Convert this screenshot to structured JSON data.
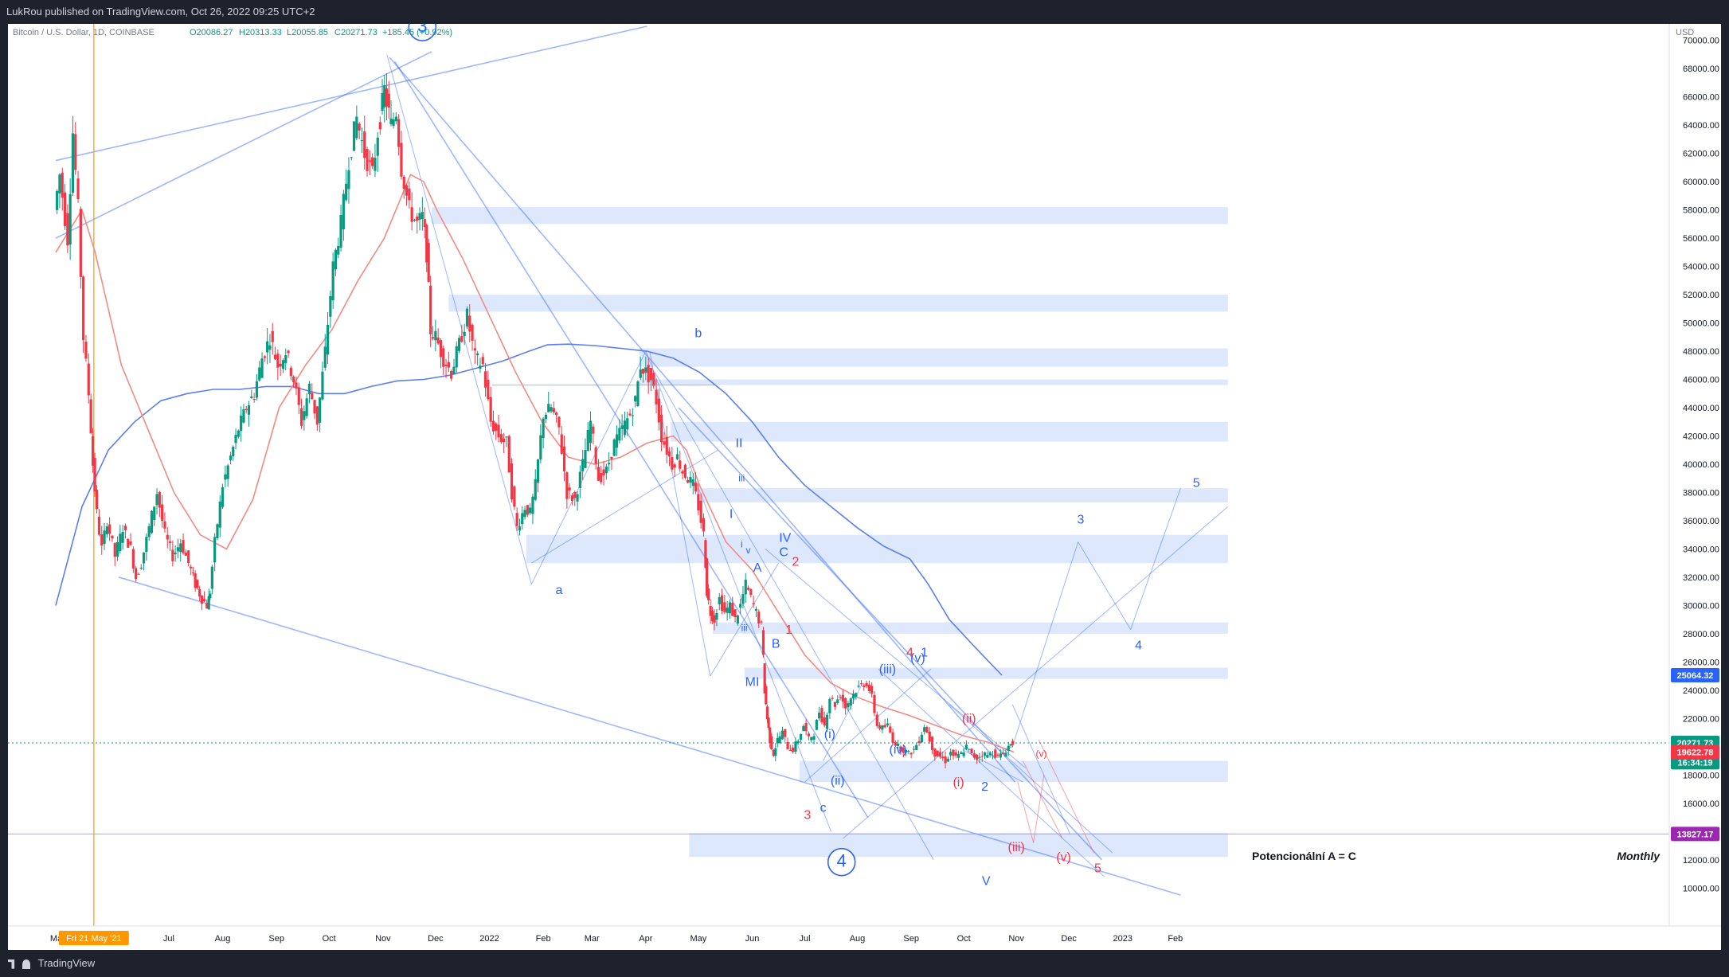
{
  "header": {
    "publish_text": "LukRou published on TradingView.com, Oct 26, 2022 09:25 UTC+2"
  },
  "footer": {
    "brand": "TradingView"
  },
  "chart_data": {
    "type": "candlestick",
    "symbol_line": "Bitcoin / U.S. Dollar, 1D, COINBASE",
    "ohlc": {
      "open": "O20086.27",
      "high": "H20313.33",
      "low": "L20055.85",
      "close": "C20271.73",
      "change": "+185.45 (+0.92%)"
    },
    "currency": "USD",
    "ylim": [
      9000,
      71000
    ],
    "y_ticks": [
      10000,
      12000,
      14000,
      16000,
      18000,
      20000,
      22000,
      24000,
      26000,
      28000,
      30000,
      32000,
      34000,
      36000,
      38000,
      40000,
      42000,
      44000,
      46000,
      48000,
      50000,
      52000,
      54000,
      56000,
      58000,
      60000,
      62000,
      64000,
      66000,
      68000,
      70000
    ],
    "x_labels": [
      {
        "t": 0.1,
        "label": "May"
      },
      {
        "t": 4.3,
        "label": "Jul"
      },
      {
        "t": 6.35,
        "label": "Aug"
      },
      {
        "t": 8.4,
        "label": "Sep"
      },
      {
        "t": 10.4,
        "label": "Oct"
      },
      {
        "t": 12.45,
        "label": "Nov"
      },
      {
        "t": 14.45,
        "label": "Dec"
      },
      {
        "t": 16.5,
        "label": "2022"
      },
      {
        "t": 18.55,
        "label": "Feb"
      },
      {
        "t": 20.4,
        "label": "Mar"
      },
      {
        "t": 22.45,
        "label": "Apr"
      },
      {
        "t": 24.45,
        "label": "May"
      },
      {
        "t": 26.5,
        "label": "Jun"
      },
      {
        "t": 28.5,
        "label": "Jul"
      },
      {
        "t": 30.5,
        "label": "Aug"
      },
      {
        "t": 32.55,
        "label": "Sep"
      },
      {
        "t": 34.55,
        "label": "Oct"
      },
      {
        "t": 36.55,
        "label": "Nov"
      },
      {
        "t": 38.55,
        "label": "Dec"
      },
      {
        "t": 40.6,
        "label": "2023"
      },
      {
        "t": 42.6,
        "label": "Feb"
      }
    ],
    "vertical_marker": {
      "t": 1.45,
      "label": "Fri 21 May '21"
    },
    "price_labels": [
      {
        "value": 25064.32,
        "text": "25064.32",
        "color": "#2962ff"
      },
      {
        "value": 20271.73,
        "text": "20271.73",
        "color": "#089981"
      },
      {
        "value": 18900,
        "text": "16:34:19",
        "color": "#089981"
      },
      {
        "value": 19622.78,
        "text": "19622.78",
        "color": "#f23645"
      },
      {
        "value": 13827.17,
        "text": "13827.17",
        "color": "#9c27b0"
      }
    ],
    "price_path": [
      [
        0,
        58000
      ],
      [
        0.2,
        60500
      ],
      [
        0.5,
        56000
      ],
      [
        0.7,
        63500
      ],
      [
        0.9,
        58000
      ],
      [
        1.1,
        49000
      ],
      [
        1.3,
        45000
      ],
      [
        1.45,
        40000
      ],
      [
        1.6,
        36500
      ],
      [
        1.8,
        34000
      ],
      [
        2.0,
        36000
      ],
      [
        2.3,
        33500
      ],
      [
        2.6,
        35500
      ],
      [
        2.9,
        34000
      ],
      [
        3.1,
        32000
      ],
      [
        3.3,
        33000
      ],
      [
        3.6,
        35500
      ],
      [
        3.9,
        38000
      ],
      [
        4.2,
        35000
      ],
      [
        4.5,
        33500
      ],
      [
        4.8,
        34500
      ],
      [
        5.1,
        33000
      ],
      [
        5.35,
        31500
      ],
      [
        5.6,
        30500
      ],
      [
        5.8,
        30000
      ],
      [
        5.9,
        31000
      ],
      [
        6.1,
        34500
      ],
      [
        6.4,
        38500
      ],
      [
        6.7,
        40500
      ],
      [
        7.0,
        42500
      ],
      [
        7.3,
        44000
      ],
      [
        7.6,
        45000
      ],
      [
        7.9,
        47500
      ],
      [
        8.2,
        49000
      ],
      [
        8.5,
        47000
      ],
      [
        8.8,
        48000
      ],
      [
        9.1,
        46000
      ],
      [
        9.4,
        43000
      ],
      [
        9.7,
        45500
      ],
      [
        10.0,
        43000
      ],
      [
        10.3,
        48000
      ],
      [
        10.6,
        54000
      ],
      [
        10.9,
        57000
      ],
      [
        11.2,
        61500
      ],
      [
        11.5,
        64500
      ],
      [
        11.8,
        62000
      ],
      [
        12.1,
        60500
      ],
      [
        12.3,
        63500
      ],
      [
        12.55,
        66500
      ],
      [
        12.8,
        64000
      ],
      [
        13.0,
        65000
      ],
      [
        13.2,
        61000
      ],
      [
        13.5,
        58000
      ],
      [
        13.8,
        57000
      ],
      [
        14.0,
        57500
      ],
      [
        14.15,
        55000
      ],
      [
        14.3,
        49500
      ],
      [
        14.5,
        49000
      ],
      [
        14.8,
        47500
      ],
      [
        15.1,
        46500
      ],
      [
        15.4,
        48500
      ],
      [
        15.7,
        50500
      ],
      [
        16.0,
        47500
      ],
      [
        16.3,
        47000
      ],
      [
        16.6,
        43000
      ],
      [
        16.9,
        42000
      ],
      [
        17.2,
        41500
      ],
      [
        17.4,
        38000
      ],
      [
        17.6,
        35500
      ],
      [
        17.9,
        37000
      ],
      [
        18.1,
        36500
      ],
      [
        18.3,
        38500
      ],
      [
        18.6,
        43500
      ],
      [
        18.9,
        44000
      ],
      [
        19.2,
        42500
      ],
      [
        19.5,
        38000
      ],
      [
        19.8,
        37500
      ],
      [
        20.1,
        40000
      ],
      [
        20.4,
        43000
      ],
      [
        20.7,
        39000
      ],
      [
        21.0,
        39500
      ],
      [
        21.3,
        41500
      ],
      [
        21.6,
        42500
      ],
      [
        21.9,
        43500
      ],
      [
        22.1,
        44500
      ],
      [
        22.3,
        47000
      ],
      [
        22.5,
        46500
      ],
      [
        22.7,
        46000
      ],
      [
        22.9,
        44500
      ],
      [
        23.1,
        42000
      ],
      [
        23.3,
        41000
      ],
      [
        23.5,
        40000
      ],
      [
        23.7,
        40500
      ],
      [
        23.9,
        39500
      ],
      [
        24.1,
        39000
      ],
      [
        24.3,
        38500
      ],
      [
        24.5,
        37000
      ],
      [
        24.7,
        35000
      ],
      [
        24.8,
        31000
      ],
      [
        24.95,
        29500
      ],
      [
        25.1,
        29000
      ],
      [
        25.3,
        30500
      ],
      [
        25.5,
        29500
      ],
      [
        25.7,
        30000
      ],
      [
        25.9,
        29000
      ],
      [
        26.1,
        30000
      ],
      [
        26.3,
        31500
      ],
      [
        26.5,
        30500
      ],
      [
        26.7,
        29500
      ],
      [
        26.9,
        28500
      ],
      [
        27.0,
        24000
      ],
      [
        27.1,
        22000
      ],
      [
        27.2,
        20500
      ],
      [
        27.35,
        19500
      ],
      [
        27.5,
        20500
      ],
      [
        27.7,
        21000
      ],
      [
        27.9,
        20000
      ],
      [
        28.1,
        19800
      ],
      [
        28.3,
        20500
      ],
      [
        28.5,
        21500
      ],
      [
        28.7,
        20500
      ],
      [
        28.9,
        21000
      ],
      [
        29.1,
        22500
      ],
      [
        29.3,
        21500
      ],
      [
        29.5,
        23500
      ],
      [
        29.7,
        23000
      ],
      [
        29.9,
        23700
      ],
      [
        30.1,
        22800
      ],
      [
        30.3,
        23500
      ],
      [
        30.5,
        24000
      ],
      [
        30.7,
        24400
      ],
      [
        30.9,
        24500
      ],
      [
        31.1,
        23500
      ],
      [
        31.3,
        21500
      ],
      [
        31.5,
        21300
      ],
      [
        31.7,
        21500
      ],
      [
        31.9,
        20500
      ],
      [
        32.1,
        20000
      ],
      [
        32.3,
        19800
      ],
      [
        32.5,
        19500
      ],
      [
        32.7,
        19800
      ],
      [
        32.9,
        20500
      ],
      [
        33.1,
        21500
      ],
      [
        33.3,
        20500
      ],
      [
        33.5,
        19500
      ],
      [
        33.7,
        19300
      ],
      [
        33.9,
        19000
      ],
      [
        34.1,
        19600
      ],
      [
        34.3,
        19200
      ],
      [
        34.5,
        19500
      ],
      [
        34.7,
        20000
      ],
      [
        34.9,
        19400
      ],
      [
        35.1,
        19200
      ],
      [
        35.3,
        19500
      ],
      [
        35.5,
        19400
      ],
      [
        35.7,
        19600
      ],
      [
        35.9,
        19300
      ],
      [
        36.1,
        19500
      ],
      [
        36.3,
        20050
      ],
      [
        36.45,
        20270
      ]
    ],
    "sma_blue": [
      [
        0,
        30000
      ],
      [
        1,
        37000
      ],
      [
        2,
        41000
      ],
      [
        3,
        43000
      ],
      [
        4,
        44500
      ],
      [
        5,
        45000
      ],
      [
        6,
        45300
      ],
      [
        7,
        45300
      ],
      [
        8,
        45500
      ],
      [
        9,
        45500
      ],
      [
        10,
        45000
      ],
      [
        11,
        45000
      ],
      [
        12,
        45500
      ],
      [
        13,
        45900
      ],
      [
        14,
        46000
      ],
      [
        15,
        46300
      ],
      [
        16,
        46800
      ],
      [
        17,
        47300
      ],
      [
        18,
        48000
      ],
      [
        18.7,
        48450
      ],
      [
        19.5,
        48500
      ],
      [
        20.5,
        48400
      ],
      [
        21.5,
        48200
      ],
      [
        22.5,
        48000
      ],
      [
        23.5,
        47500
      ],
      [
        24.5,
        46500
      ],
      [
        25.5,
        45000
      ],
      [
        26.5,
        43000
      ],
      [
        27.5,
        40500
      ],
      [
        28.5,
        38500
      ],
      [
        29.5,
        37000
      ],
      [
        30.5,
        35500
      ],
      [
        31.5,
        34200
      ],
      [
        32.5,
        33300
      ],
      [
        33.2,
        31500
      ],
      [
        34,
        29000
      ],
      [
        35,
        27000
      ],
      [
        36,
        25064
      ]
    ],
    "sma_red": [
      [
        0,
        55000
      ],
      [
        1,
        58000
      ],
      [
        1.5,
        55000
      ],
      [
        2.5,
        47000
      ],
      [
        3.5,
        42500
      ],
      [
        4.5,
        38000
      ],
      [
        5.5,
        35000
      ],
      [
        6.5,
        34000
      ],
      [
        7.5,
        37500
      ],
      [
        8.5,
        44000
      ],
      [
        9.5,
        47000
      ],
      [
        10.5,
        49500
      ],
      [
        11.5,
        53000
      ],
      [
        12.5,
        56000
      ],
      [
        13.5,
        60500
      ],
      [
        14,
        60000
      ],
      [
        14.5,
        58000
      ],
      [
        15.5,
        54500
      ],
      [
        16.5,
        50500
      ],
      [
        17.5,
        46500
      ],
      [
        18.5,
        43000
      ],
      [
        19.5,
        40500
      ],
      [
        20.5,
        40000
      ],
      [
        21.5,
        40500
      ],
      [
        22.5,
        41500
      ],
      [
        23.5,
        42000
      ],
      [
        24,
        41000
      ],
      [
        24.5,
        38500
      ],
      [
        25,
        36500
      ],
      [
        25.5,
        34500
      ],
      [
        26.5,
        32500
      ],
      [
        27.5,
        29500
      ],
      [
        28.5,
        26500
      ],
      [
        29.5,
        24500
      ],
      [
        30.5,
        23500
      ],
      [
        31.5,
        22800
      ],
      [
        32.5,
        22200
      ],
      [
        33.5,
        21500
      ],
      [
        34.5,
        20800
      ],
      [
        35.5,
        20300
      ],
      [
        36.45,
        19622.78
      ]
    ],
    "zones": [
      {
        "t1": 14.3,
        "t2": 44.6,
        "lo": 57000,
        "hi": 58200
      },
      {
        "t1": 14.95,
        "t2": 44.6,
        "lo": 50800,
        "hi": 52000
      },
      {
        "t1": 22.2,
        "t2": 44.6,
        "lo": 46900,
        "hi": 48200
      },
      {
        "t1": 22.2,
        "t2": 44.6,
        "lo": 45600,
        "hi": 46000
      },
      {
        "t1": 23.4,
        "t2": 44.6,
        "lo": 41600,
        "hi": 43000
      },
      {
        "t1": 24.4,
        "t2": 44.6,
        "lo": 37300,
        "hi": 38300
      },
      {
        "t1": 17.9,
        "t2": 44.6,
        "lo": 33000,
        "hi": 35000
      },
      {
        "t1": 25.0,
        "t2": 44.6,
        "lo": 28000,
        "hi": 28800
      },
      {
        "t1": 26.2,
        "t2": 44.6,
        "lo": 24800,
        "hi": 25600
      },
      {
        "t1": 28.3,
        "t2": 44.6,
        "lo": 17500,
        "hi": 19000
      },
      {
        "t1": 24.1,
        "t2": 44.6,
        "lo": 12200,
        "hi": 13900
      }
    ],
    "wave_labels": [
      {
        "t": 13.95,
        "v": 70600,
        "text": "3",
        "color": "#2962ff",
        "circle": true
      },
      {
        "t": 29.9,
        "v": 11500,
        "text": "4",
        "color": "#2962ff",
        "circle": true
      },
      {
        "t": 24.45,
        "v": 49000,
        "text": "b",
        "color": "#2962ff"
      },
      {
        "t": 19.15,
        "v": 30800,
        "text": "a",
        "color": "#2962ff"
      },
      {
        "t": 29.2,
        "v": 15400,
        "text": "c",
        "color": "#2962ff"
      },
      {
        "t": 26.0,
        "v": 41200,
        "text": "II",
        "color": "#2962ff"
      },
      {
        "t": 25.7,
        "v": 36200,
        "text": "I",
        "color": "#2962ff"
      },
      {
        "t": 26.1,
        "v": 38800,
        "text": "iii",
        "color": "#2962ff",
        "small": true
      },
      {
        "t": 26.1,
        "v": 34100,
        "text": "i",
        "color": "#2962ff",
        "small": true
      },
      {
        "t": 26.35,
        "v": 33700,
        "text": "v",
        "color": "#2962ff",
        "small": true
      },
      {
        "t": 26.2,
        "v": 28200,
        "text": "iii",
        "color": "#2962ff",
        "small": true
      },
      {
        "t": 26.5,
        "v": 24300,
        "text": "MI",
        "color": "#2962ff"
      },
      {
        "t": 27.75,
        "v": 34500,
        "text": "IV",
        "color": "#2962ff"
      },
      {
        "t": 26.7,
        "v": 32400,
        "text": "A",
        "color": "#2962ff"
      },
      {
        "t": 27.4,
        "v": 27000,
        "text": "B",
        "color": "#2962ff"
      },
      {
        "t": 27.7,
        "v": 33500,
        "text": "C",
        "color": "#2962ff"
      },
      {
        "t": 28.15,
        "v": 32800,
        "text": "2",
        "color": "#f23645"
      },
      {
        "t": 27.9,
        "v": 28000,
        "text": "1",
        "color": "#f23645"
      },
      {
        "t": 28.6,
        "v": 14900,
        "text": "3",
        "color": "#f23645"
      },
      {
        "t": 29.45,
        "v": 20600,
        "text": "(i)",
        "color": "#2962ff"
      },
      {
        "t": 29.75,
        "v": 17300,
        "text": "(ii)",
        "color": "#2962ff"
      },
      {
        "t": 31.65,
        "v": 25200,
        "text": "(iii)",
        "color": "#2962ff"
      },
      {
        "t": 32.05,
        "v": 19500,
        "text": "(iv)",
        "color": "#2962ff"
      },
      {
        "t": 32.8,
        "v": 26000,
        "text": "(v)",
        "color": "#2962ff"
      },
      {
        "t": 32.5,
        "v": 26400,
        "text": "4",
        "color": "#f23645"
      },
      {
        "t": 33.05,
        "v": 26400,
        "text": "1",
        "color": "#2962ff"
      },
      {
        "t": 34.75,
        "v": 21700,
        "text": "(ii)",
        "color": "#f23645"
      },
      {
        "t": 34.35,
        "v": 17200,
        "text": "(i)",
        "color": "#f23645"
      },
      {
        "t": 35.35,
        "v": 16900,
        "text": "2",
        "color": "#2962ff"
      },
      {
        "t": 36.55,
        "v": 12600,
        "text": "(iii)",
        "color": "#f23645"
      },
      {
        "t": 38.35,
        "v": 11900,
        "text": "(v)",
        "color": "#f23645"
      },
      {
        "t": 37.5,
        "v": 19300,
        "text": "(v)",
        "color": "#f23645",
        "small": true
      },
      {
        "t": 39.65,
        "v": 11100,
        "text": "5",
        "color": "#f23645"
      },
      {
        "t": 35.4,
        "v": 10200,
        "text": "V",
        "color": "#2962ff"
      },
      {
        "t": 39.0,
        "v": 35800,
        "text": "3",
        "color": "#2962ff"
      },
      {
        "t": 41.2,
        "v": 26900,
        "text": "4",
        "color": "#2962ff"
      },
      {
        "t": 43.4,
        "v": 38400,
        "text": "5",
        "color": "#2962ff"
      }
    ],
    "annotations": {
      "a_equals_c": "Potencionální A = C",
      "monthly": "Monthly"
    },
    "colors": {
      "background": "#ffffff",
      "up": "#089981",
      "down": "#f23645",
      "sma_blue": "#5b7ff0",
      "sma_red": "#f28b82",
      "trendline": "#2962ff",
      "zone": "#d6e2fb"
    }
  }
}
